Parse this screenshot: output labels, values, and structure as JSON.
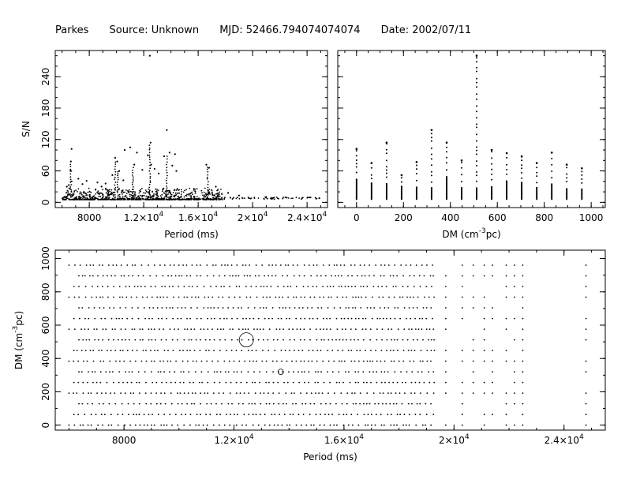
{
  "header": {
    "telescope": "Parkes",
    "source": "Source: Unknown",
    "mjd": "MJD: 52466.794074074074",
    "date": "Date: 2002/07/11"
  },
  "chart_data": [
    {
      "type": "scatter",
      "id": "snr-vs-period",
      "xlabel": "Period (ms)",
      "ylabel": "S/N",
      "xlim": [
        5500,
        25500
      ],
      "ylim": [
        -10,
        290
      ],
      "x_ticks": [
        8000,
        12000,
        16000,
        20000,
        24000
      ],
      "x_tick_labels": [
        "8000",
        "1.2×10",
        "1.6×10",
        "2×10",
        "2.4×10"
      ],
      "x_tick_exponents": [
        "",
        "4",
        "4",
        "4",
        "4"
      ],
      "y_ticks": [
        0,
        60,
        120,
        180,
        240
      ],
      "y_tick_labels": [
        "0",
        "60",
        "120",
        "180",
        "240"
      ],
      "points": [
        [
          6700,
          102
        ],
        [
          6650,
          78
        ],
        [
          6620,
          60
        ],
        [
          6700,
          40
        ],
        [
          6500,
          33
        ],
        [
          6350,
          30
        ],
        [
          7200,
          45
        ],
        [
          7500,
          35
        ],
        [
          7800,
          41
        ],
        [
          8600,
          38
        ],
        [
          8900,
          30
        ],
        [
          9200,
          36
        ],
        [
          9700,
          52
        ],
        [
          9900,
          85
        ],
        [
          10050,
          78
        ],
        [
          10200,
          60
        ],
        [
          10500,
          42
        ],
        [
          11000,
          105
        ],
        [
          11300,
          72
        ],
        [
          11500,
          95
        ],
        [
          11900,
          62
        ],
        [
          12300,
          90
        ],
        [
          12450,
          280
        ],
        [
          12500,
          114
        ],
        [
          12550,
          72
        ],
        [
          13100,
          55
        ],
        [
          13500,
          88
        ],
        [
          13700,
          138
        ],
        [
          13900,
          95
        ],
        [
          14100,
          70
        ],
        [
          14300,
          92
        ],
        [
          14400,
          60
        ],
        [
          16600,
          72
        ],
        [
          16800,
          66
        ],
        [
          17300,
          30
        ],
        [
          18200,
          18
        ],
        [
          19000,
          13
        ],
        [
          21000,
          10
        ],
        [
          22500,
          9
        ],
        [
          24900,
          8
        ],
        [
          10600,
          100
        ],
        [
          12800,
          64
        ]
      ],
      "grid": false,
      "legend": "none"
    },
    {
      "type": "scatter",
      "id": "snr-vs-dm",
      "xlabel": "DM (cm^-3pc)",
      "ylabel": "",
      "xlim": [
        -80,
        1060
      ],
      "ylim": [
        -10,
        290
      ],
      "x_ticks": [
        0,
        200,
        400,
        600,
        800,
        1000
      ],
      "x_tick_labels": [
        "0",
        "200",
        "400",
        "600",
        "800",
        "1000"
      ],
      "y_ticks": [
        0,
        60,
        120,
        180,
        240
      ],
      "dm_columns": [
        0,
        64,
        128,
        192,
        256,
        320,
        384,
        448,
        512,
        576,
        640,
        704,
        768,
        832,
        896,
        960
      ],
      "column_max_snr": [
        102,
        75,
        114,
        52,
        77,
        138,
        114,
        80,
        280,
        100,
        94,
        88,
        75,
        95,
        72,
        65
      ],
      "grid": false,
      "legend": "none"
    },
    {
      "type": "scatter",
      "id": "dm-vs-period",
      "xlabel": "Period (ms)",
      "ylabel": "DM (cm^-3pc)",
      "xlim": [
        5500,
        25500
      ],
      "ylim": [
        -30,
        1050
      ],
      "x_ticks": [
        8000,
        12000,
        16000,
        20000,
        24000
      ],
      "x_tick_labels": [
        "8000",
        "1.2×10",
        "1.6×10",
        "2×10",
        "2.4×10"
      ],
      "x_tick_exponents": [
        "",
        "4",
        "4",
        "4",
        "4"
      ],
      "y_ticks": [
        0,
        200,
        400,
        600,
        800,
        1000
      ],
      "y_tick_labels": [
        "0",
        "200",
        "400",
        "600",
        "800",
        "1000"
      ],
      "dm_rows": [
        0,
        64,
        128,
        192,
        256,
        320,
        384,
        448,
        512,
        576,
        640,
        704,
        768,
        832,
        896,
        960
      ],
      "period_range_ms": [
        6000,
        19300
      ],
      "sparse_periods_ms": [
        19700,
        20300,
        20700,
        21100,
        21400,
        21900,
        22200,
        22500,
        24800
      ],
      "highlight_circles": [
        {
          "period_ms": 12450,
          "dm": 512,
          "size": "large"
        },
        {
          "period_ms": 13700,
          "dm": 320,
          "size": "small"
        }
      ],
      "grid": false,
      "legend": "none"
    }
  ]
}
